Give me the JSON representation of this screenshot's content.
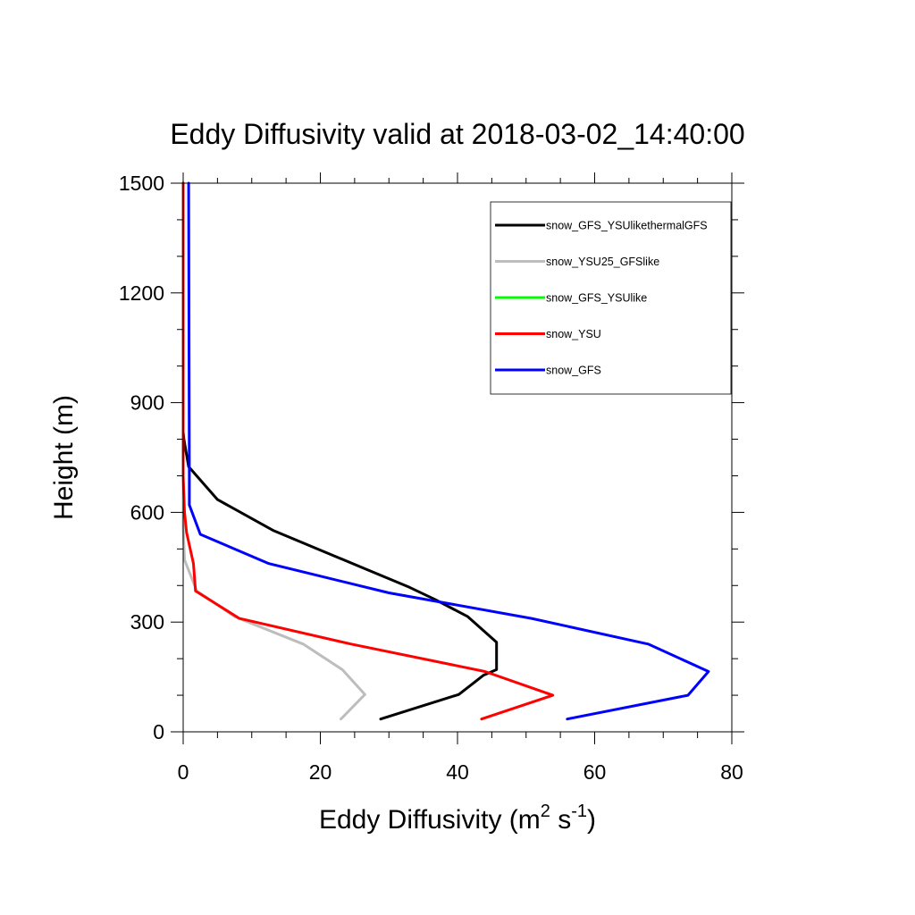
{
  "chart_data": {
    "type": "line",
    "title": "Eddy Diffusivity valid at 2018-03-02_14:40:00",
    "xlabel": {
      "base": "Eddy Diffusivity (m",
      "sup1": "2",
      "mid": " s",
      "sup2": "-1",
      "end": ")"
    },
    "ylabel": "Height (m)",
    "xlim": [
      0,
      80
    ],
    "ylim": [
      0,
      1500
    ],
    "xticks": [
      "0",
      "20",
      "40",
      "60",
      "80"
    ],
    "yticks": [
      "0",
      "300",
      "600",
      "900",
      "1200",
      "1500"
    ],
    "legend_position": "top-right",
    "series": [
      {
        "name": "snow_GFS_YSUlikethermalGFS",
        "color": "#000000",
        "points": [
          [
            28.8,
            35
          ],
          [
            40.2,
            102
          ],
          [
            43.8,
            155
          ],
          [
            45.7,
            170
          ],
          [
            45.7,
            245
          ],
          [
            41.5,
            315
          ],
          [
            36.7,
            362
          ],
          [
            33.0,
            395
          ],
          [
            13.2,
            550
          ],
          [
            5.0,
            635
          ],
          [
            0.8,
            725
          ],
          [
            0.1,
            800
          ],
          [
            0.0,
            820
          ],
          [
            0.0,
            1500
          ]
        ]
      },
      {
        "name": "snow_YSU25_GFSlike",
        "color": "#bdbdbd",
        "points": [
          [
            23.0,
            35
          ],
          [
            26.5,
            102
          ],
          [
            23.2,
            170
          ],
          [
            17.5,
            240
          ],
          [
            7.5,
            315
          ],
          [
            2.0,
            385
          ],
          [
            0.2,
            470
          ],
          [
            0.0,
            560
          ],
          [
            0.0,
            820
          ],
          [
            0.0,
            1500
          ]
        ]
      },
      {
        "name": "snow_GFS_YSUlike",
        "color": "#00ff00",
        "points": []
      },
      {
        "name": "snow_YSU",
        "color": "#ff0000",
        "points": [
          [
            43.5,
            35
          ],
          [
            53.9,
            100
          ],
          [
            44.0,
            165
          ],
          [
            24.5,
            240
          ],
          [
            8.2,
            310
          ],
          [
            1.8,
            385
          ],
          [
            1.5,
            460
          ],
          [
            0.5,
            545
          ],
          [
            0.2,
            600
          ],
          [
            0.0,
            700
          ],
          [
            0.0,
            1500
          ]
        ]
      },
      {
        "name": "snow_GFS",
        "color": "#0000ff",
        "points": [
          [
            56.0,
            35
          ],
          [
            73.6,
            100
          ],
          [
            76.6,
            165
          ],
          [
            67.8,
            240
          ],
          [
            50.8,
            310
          ],
          [
            30.0,
            380
          ],
          [
            12.5,
            460
          ],
          [
            2.5,
            540
          ],
          [
            0.9,
            620
          ],
          [
            0.9,
            700
          ],
          [
            0.8,
            1500
          ]
        ]
      }
    ]
  }
}
